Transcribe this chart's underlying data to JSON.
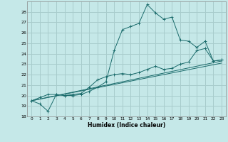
{
  "xlabel": "Humidex (Indice chaleur)",
  "background_color": "#c5e8e8",
  "grid_color": "#a8cccc",
  "line_color": "#1a6b6b",
  "xlim": [
    -0.5,
    23.5
  ],
  "ylim": [
    18,
    29
  ],
  "yticks": [
    18,
    19,
    20,
    21,
    22,
    23,
    24,
    25,
    26,
    27,
    28
  ],
  "xticks": [
    0,
    1,
    2,
    3,
    4,
    5,
    6,
    7,
    8,
    9,
    10,
    11,
    12,
    13,
    14,
    15,
    16,
    17,
    18,
    19,
    20,
    21,
    22,
    23
  ],
  "series1_x": [
    0,
    1,
    2,
    3,
    4,
    5,
    6,
    7,
    8,
    9,
    10,
    11,
    12,
    13,
    14,
    15,
    16,
    17,
    18,
    19,
    20,
    21,
    22,
    23
  ],
  "series1_y": [
    19.5,
    19.2,
    18.5,
    20.1,
    20.0,
    20.0,
    20.1,
    20.4,
    20.8,
    21.3,
    24.3,
    26.3,
    26.6,
    26.9,
    28.7,
    27.9,
    27.3,
    27.5,
    25.3,
    25.2,
    24.6,
    25.2,
    23.3,
    23.4
  ],
  "series2_x": [
    0,
    1,
    2,
    3,
    4,
    5,
    6,
    7,
    8,
    9,
    10,
    11,
    12,
    13,
    14,
    15,
    16,
    17,
    18,
    19,
    20,
    21,
    22,
    23
  ],
  "series2_y": [
    19.5,
    19.8,
    20.1,
    20.1,
    20.0,
    20.1,
    20.2,
    20.8,
    21.5,
    21.8,
    22.0,
    22.1,
    22.0,
    22.2,
    22.5,
    22.8,
    22.5,
    22.6,
    23.0,
    23.2,
    24.3,
    24.5,
    23.3,
    23.4
  ],
  "series3_x": [
    0,
    23
  ],
  "series3_y": [
    19.5,
    23.3
  ],
  "series4_x": [
    0,
    23
  ],
  "series4_y": [
    19.5,
    23.1
  ]
}
